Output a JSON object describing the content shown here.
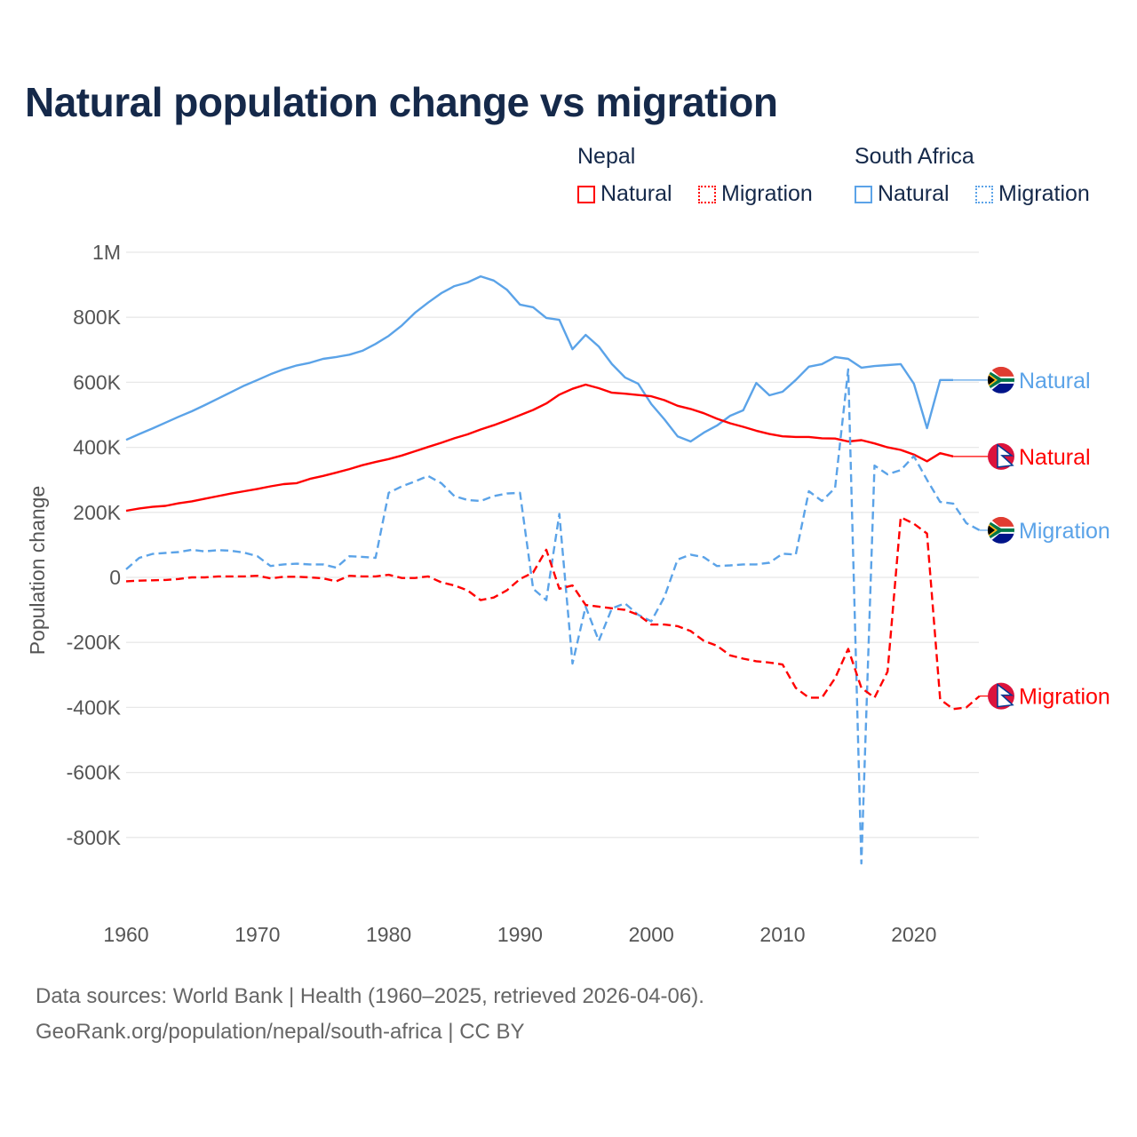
{
  "title": "Natural population change vs migration",
  "legend": {
    "groups": [
      {
        "name": "Nepal",
        "items": [
          "Natural",
          "Migration"
        ]
      },
      {
        "name": "South Africa",
        "items": [
          "Natural",
          "Migration"
        ]
      }
    ]
  },
  "source": {
    "line1": "Data sources: World Bank | Health (1960–2025, retrieved 2026-04-06).",
    "line2": "GeoRank.org/population/nepal/south-africa | CC BY"
  },
  "colors": {
    "nepal": "#ff0000",
    "south_africa": "#5ba3e8",
    "grid": "#e6e6e6",
    "title": "#15294a"
  },
  "chart_data": {
    "type": "line",
    "title": "Natural population change vs migration",
    "xlabel": "",
    "ylabel": "Population change",
    "xlim": [
      1960,
      2025
    ],
    "ylim": [
      -900000,
      1000000
    ],
    "xticks": [
      1960,
      1970,
      1980,
      1990,
      2000,
      2010,
      2020
    ],
    "xtick_labels": [
      "1960",
      "1970",
      "1980",
      "1990",
      "2000",
      "2010",
      "2020"
    ],
    "yticks": [
      1000000,
      800000,
      600000,
      400000,
      200000,
      0,
      -200000,
      -400000,
      -600000,
      -800000
    ],
    "ytick_labels": [
      "1M",
      "800K",
      "600K",
      "400K",
      "200K",
      "0",
      "-200K",
      "-400K",
      "-600K",
      "-800K"
    ],
    "grid": true,
    "legend_position": "top-right",
    "series": [
      {
        "name": "South Africa Natural",
        "country": "South Africa",
        "kind": "Natural",
        "label": "Natural",
        "color": "#5ba3e8",
        "dash": "solid",
        "start": 1960,
        "extend_to": 2025,
        "values": [
          423,
          441,
          458,
          476,
          494,
          511,
          530,
          550,
          570,
          590,
          607,
          625,
          640,
          652,
          660,
          672,
          678,
          685,
          697,
          718,
          743,
          775,
          814,
          845,
          874,
          896,
          907,
          926,
          913,
          885,
          839,
          831,
          798,
          792,
          702,
          746,
          710,
          656,
          615,
          596,
          533,
          486,
          434,
          418,
          445,
          467,
          497,
          514,
          598,
          560,
          571,
          607,
          648,
          656,
          678,
          672,
          645,
          650,
          653,
          656,
          596,
          459,
          607,
          607
        ]
      },
      {
        "name": "Nepal Natural",
        "country": "Nepal",
        "kind": "Natural",
        "label": "Natural",
        "color": "#ff0000",
        "dash": "solid",
        "start": 1960,
        "extend_to": 2025,
        "values": [
          205,
          212,
          217,
          220,
          228,
          234,
          242,
          250,
          258,
          265,
          272,
          280,
          287,
          290,
          303,
          312,
          322,
          333,
          345,
          355,
          364,
          375,
          388,
          401,
          414,
          428,
          440,
          455,
          468,
          483,
          499,
          515,
          535,
          562,
          580,
          593,
          582,
          568,
          565,
          561,
          557,
          545,
          528,
          518,
          505,
          488,
          474,
          463,
          451,
          441,
          434,
          432,
          432,
          428,
          427,
          418,
          422,
          412,
          400,
          392,
          378,
          357,
          382,
          372
        ]
      },
      {
        "name": "South Africa Migration",
        "country": "South Africa",
        "kind": "Migration",
        "label": "Migration",
        "color": "#5ba3e8",
        "dash": "dashed",
        "start": 1960,
        "extend_to": 2025,
        "values": [
          25,
          60,
          72,
          75,
          78,
          85,
          80,
          84,
          82,
          76,
          65,
          35,
          40,
          42,
          40,
          40,
          30,
          65,
          63,
          60,
          260,
          280,
          295,
          312,
          290,
          250,
          238,
          235,
          250,
          258,
          260,
          -35,
          -70,
          195,
          -265,
          -90,
          -195,
          -95,
          -80,
          -115,
          -135,
          -60,
          55,
          70,
          62,
          35,
          37,
          40,
          40,
          45,
          73,
          70,
          265,
          235,
          275,
          640,
          -880,
          344,
          317,
          330,
          373,
          300,
          232,
          227,
          167,
          145
        ]
      },
      {
        "name": "Nepal Migration",
        "country": "Nepal",
        "kind": "Migration",
        "label": "Migration",
        "color": "#ff0000",
        "dash": "dashed",
        "start": 1960,
        "extend_to": 2025,
        "values": [
          -12,
          -10,
          -9,
          -8,
          -5,
          0,
          0,
          3,
          3,
          3,
          5,
          -3,
          2,
          2,
          0,
          -3,
          -12,
          5,
          3,
          3,
          8,
          -2,
          -2,
          3,
          -15,
          -25,
          -40,
          -70,
          -62,
          -40,
          -5,
          15,
          85,
          -35,
          -25,
          -85,
          -90,
          -95,
          -100,
          -115,
          -145,
          -145,
          -150,
          -165,
          -195,
          -210,
          -240,
          -250,
          -258,
          -262,
          -268,
          -340,
          -370,
          -370,
          -310,
          -220,
          -340,
          -370,
          -290,
          185,
          165,
          135,
          -375,
          -405,
          -400,
          -365
        ]
      }
    ],
    "value_unit": "thousands"
  }
}
